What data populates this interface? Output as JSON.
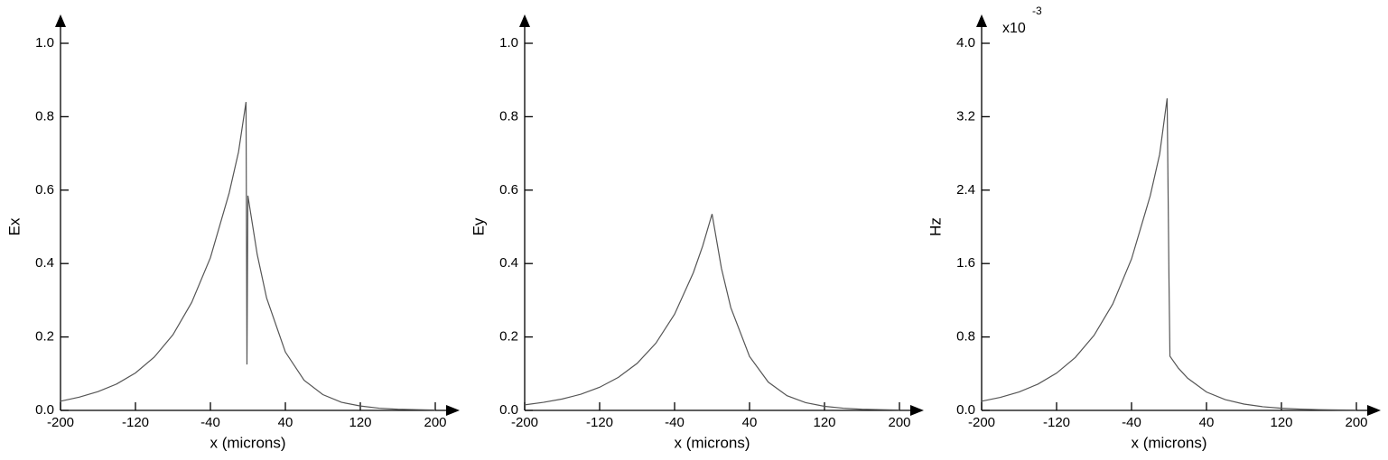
{
  "chart_data": [
    {
      "type": "line",
      "x_label": "x (microns)",
      "y_label": "Ex",
      "color": "#555555",
      "x": [
        -200,
        -180,
        -160,
        -140,
        -120,
        -100,
        -80,
        -60,
        -40,
        -20,
        -10,
        -2,
        -1,
        0,
        10,
        20,
        40,
        60,
        80,
        100,
        120,
        140,
        160,
        180,
        200
      ],
      "values": [
        0.025,
        0.036,
        0.051,
        0.072,
        0.102,
        0.145,
        0.206,
        0.294,
        0.416,
        0.592,
        0.704,
        0.84,
        0.125,
        0.585,
        0.424,
        0.306,
        0.159,
        0.082,
        0.043,
        0.022,
        0.012,
        0.006,
        0.003,
        0.002,
        0.001
      ],
      "xlim": [
        -200,
        200
      ],
      "ylim": [
        0,
        1
      ],
      "xticks": [
        -200,
        -120,
        -40,
        40,
        120,
        200
      ],
      "yticks": [
        {
          "value": 0,
          "label": "0.0"
        },
        0.2,
        0.4,
        0.6,
        0.8,
        {
          "value": 1,
          "label": "1.0"
        }
      ]
    },
    {
      "type": "line",
      "x_label": "x (microns)",
      "y_label": "Ey",
      "color": "#555555",
      "x": [
        -200,
        -180,
        -160,
        -140,
        -120,
        -100,
        -80,
        -60,
        -40,
        -20,
        -10,
        0,
        10,
        20,
        40,
        60,
        80,
        100,
        120,
        140,
        160,
        180,
        200
      ],
      "values": [
        0.015,
        0.022,
        0.031,
        0.044,
        0.063,
        0.09,
        0.128,
        0.183,
        0.262,
        0.375,
        0.448,
        0.535,
        0.387,
        0.28,
        0.147,
        0.077,
        0.04,
        0.021,
        0.011,
        0.006,
        0.003,
        0.002,
        0.001
      ],
      "xlim": [
        -200,
        200
      ],
      "ylim": [
        0,
        1
      ],
      "xticks": [
        -200,
        -120,
        -40,
        40,
        120,
        200
      ],
      "yticks": [
        {
          "value": 0,
          "label": "0.0"
        },
        0.2,
        0.4,
        0.6,
        0.8,
        {
          "value": 1,
          "label": "1.0"
        }
      ]
    },
    {
      "type": "line",
      "x_label": "x (microns)",
      "y_label": "Hz",
      "color": "#555555",
      "axis_multiplier": "x10",
      "axis_multiplier_exponent": "-3",
      "x": [
        -200,
        -180,
        -160,
        -140,
        -120,
        -100,
        -80,
        -60,
        -40,
        -20,
        -10,
        -2,
        0,
        1,
        10,
        20,
        40,
        60,
        80,
        100,
        120,
        140,
        160,
        180,
        200
      ],
      "values": [
        0.1,
        0.142,
        0.201,
        0.286,
        0.406,
        0.577,
        0.818,
        1.16,
        1.65,
        2.34,
        2.79,
        3.4,
        1.4,
        0.59,
        0.46,
        0.35,
        0.2,
        0.117,
        0.069,
        0.04,
        0.023,
        0.014,
        0.008,
        0.005,
        0.003
      ],
      "xlim": [
        -200,
        200
      ],
      "ylim": [
        0,
        4
      ],
      "xticks": [
        -200,
        -120,
        -40,
        40,
        120,
        200
      ],
      "yticks": [
        {
          "value": 0,
          "label": "0.0"
        },
        0.8,
        1.6,
        2.4,
        3.2,
        {
          "value": 4,
          "label": "4.0"
        }
      ]
    }
  ]
}
